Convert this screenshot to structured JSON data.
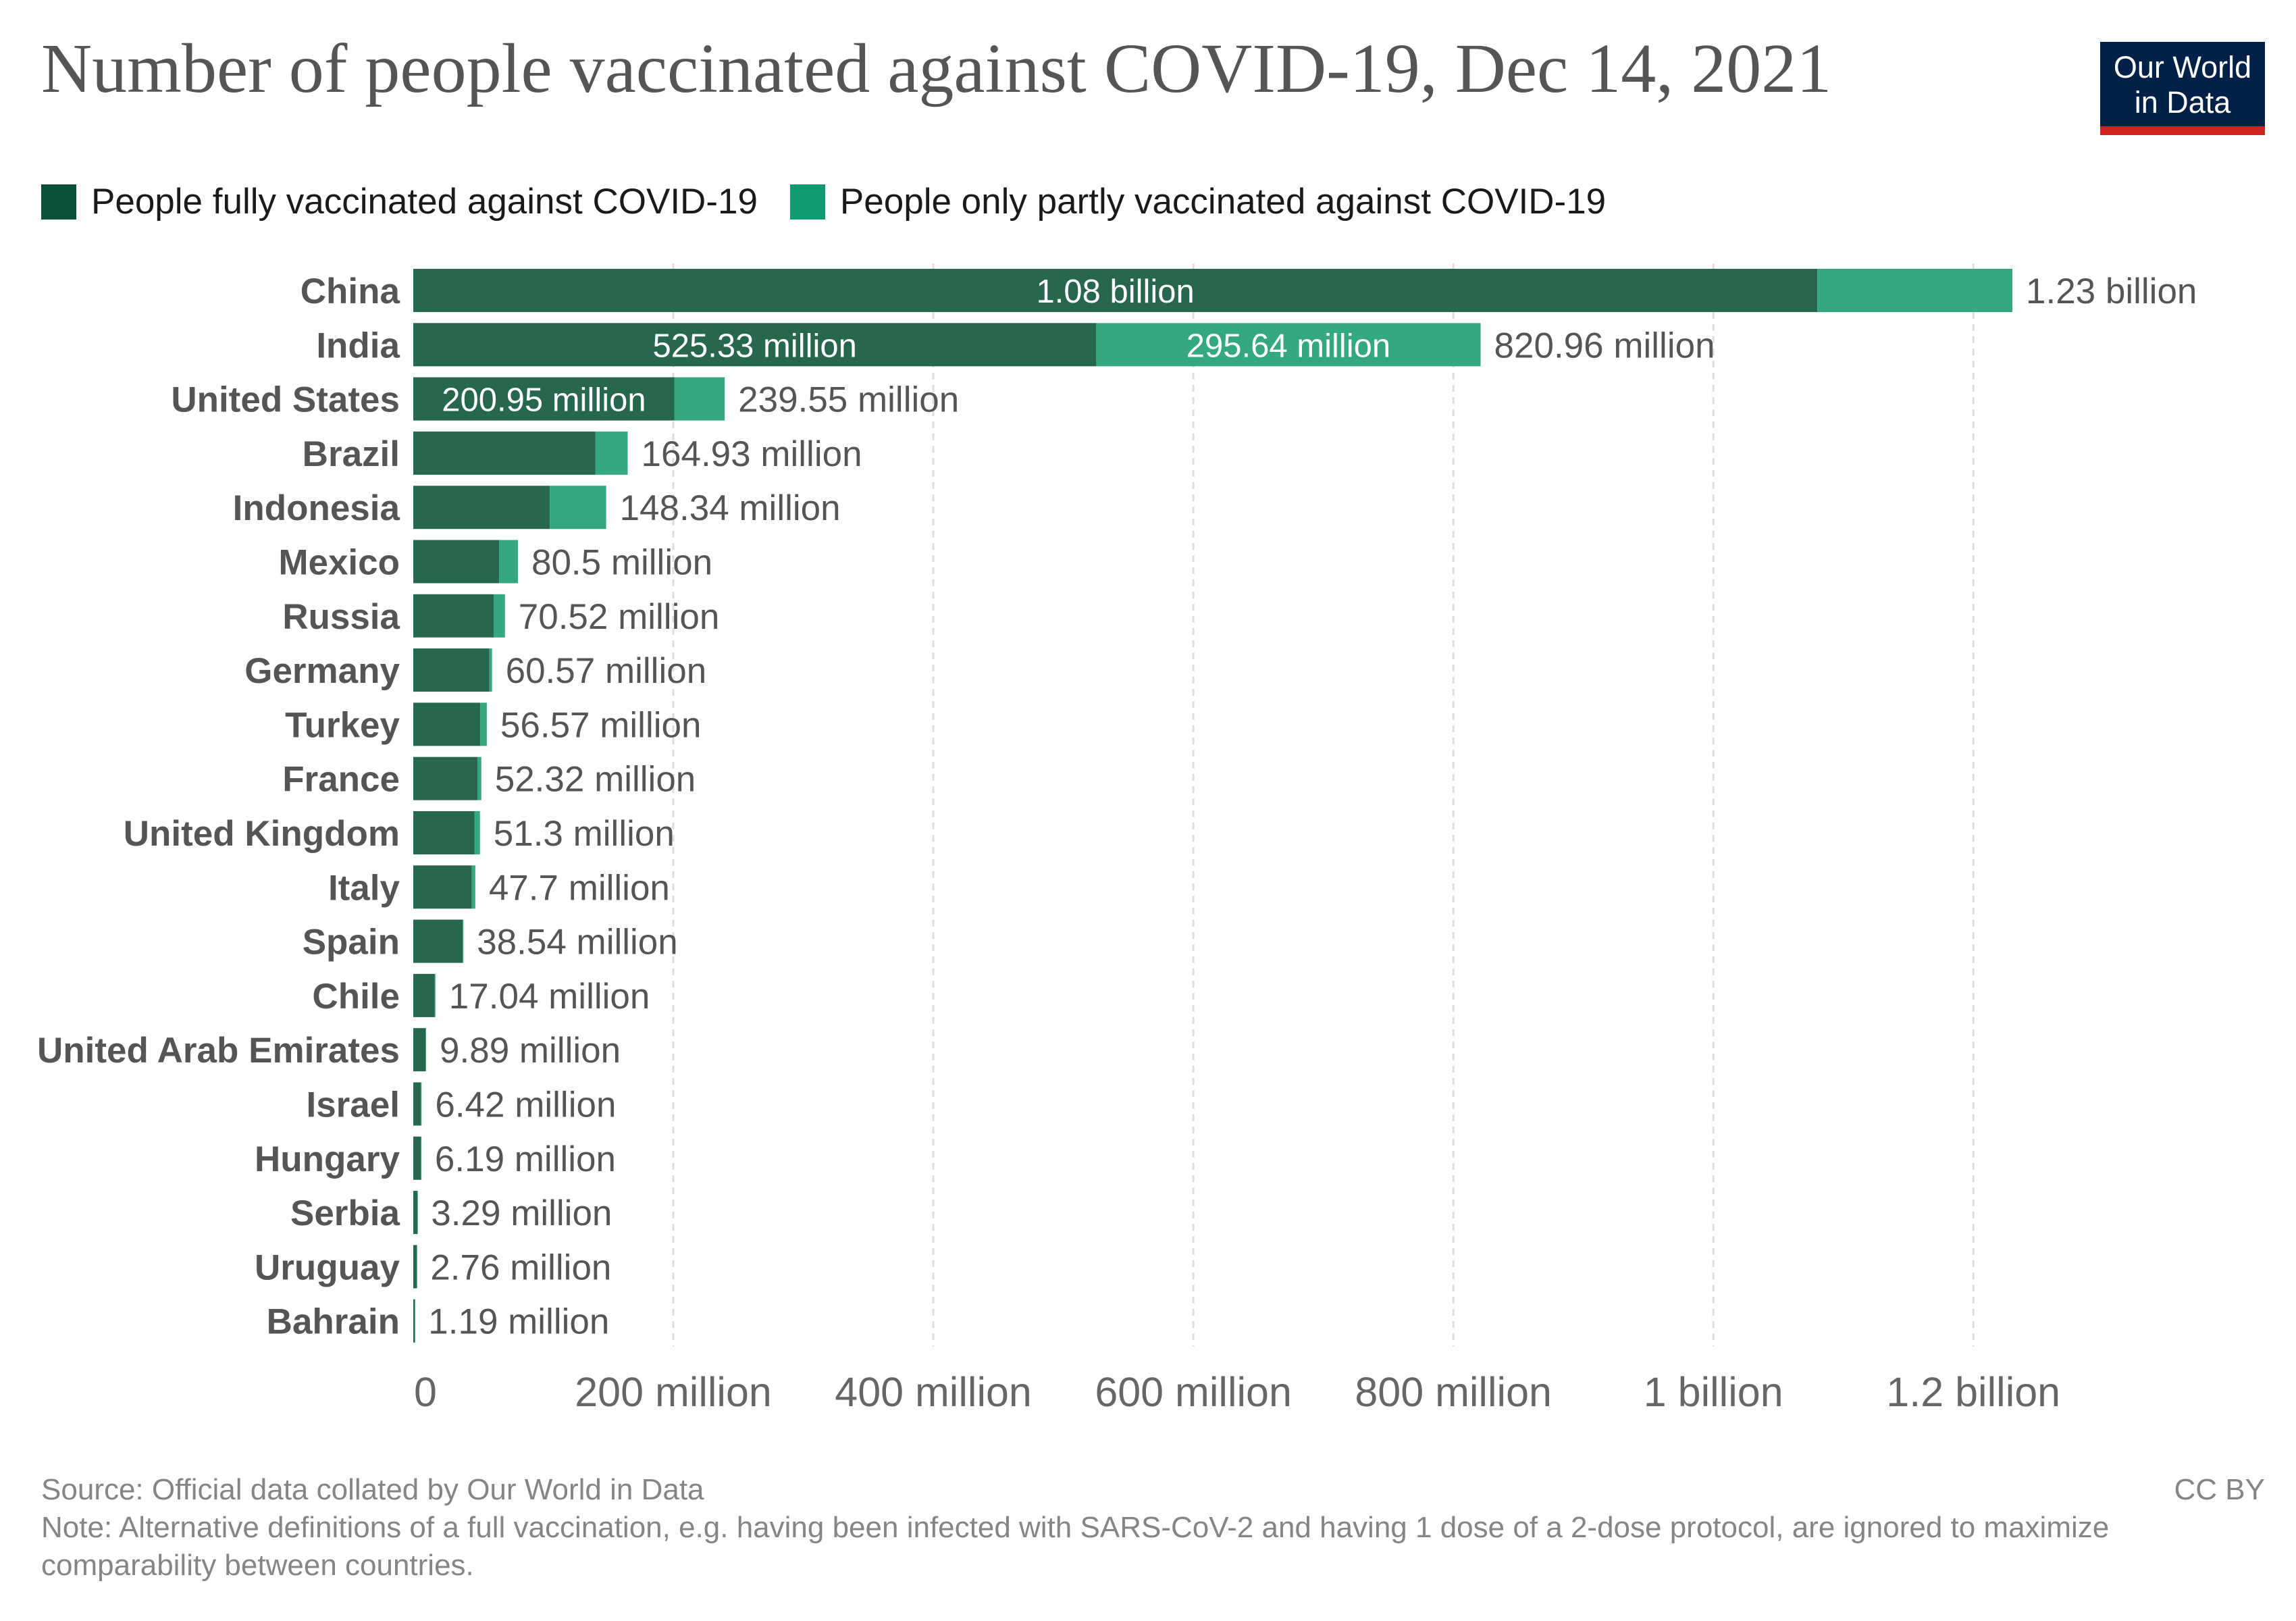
{
  "title": "Number of people vaccinated against COVID-19, Dec 14, 2021",
  "logo": {
    "line1": "Our World",
    "line2": "in Data"
  },
  "legend": {
    "full_label": "People fully vaccinated against COVID-19",
    "partial_label": "People only partly vaccinated against COVID-19"
  },
  "colors": {
    "full": "#26674e",
    "partial": "#33a883",
    "legend_full": "#09503a",
    "legend_partial": "#0f9a6f",
    "grid": "#dddddd",
    "tick": "#666666",
    "label": "#555555",
    "logo_bg": "#002147",
    "logo_bar": "#ce261e"
  },
  "chart_data": {
    "type": "bar",
    "orientation": "horizontal",
    "stacked": true,
    "title": "Number of people vaccinated against COVID-19, Dec 14, 2021",
    "units": "people",
    "categories": [
      "China",
      "India",
      "United States",
      "Brazil",
      "Indonesia",
      "Mexico",
      "Russia",
      "Germany",
      "Turkey",
      "France",
      "United Kingdom",
      "Italy",
      "Spain",
      "Chile",
      "United Arab Emirates",
      "Israel",
      "Hungary",
      "Serbia",
      "Uruguay",
      "Bahrain"
    ],
    "series": [
      {
        "name": "People fully vaccinated against COVID-19",
        "values": [
          1080000000,
          525330000,
          200950000,
          140000000,
          105000000,
          66000000,
          62000000,
          58500000,
          51500000,
          49500000,
          47000000,
          45000000,
          38000000,
          16500000,
          9400000,
          5800000,
          5900000,
          3100000,
          2600000,
          1100000
        ]
      },
      {
        "name": "People only partly vaccinated against COVID-19",
        "values": [
          150000000,
          295640000,
          38600000,
          24930000,
          43340000,
          14500000,
          8520000,
          2070000,
          5070000,
          2820000,
          4300000,
          2700000,
          540000,
          540000,
          490000,
          620000,
          290000,
          190000,
          160000,
          90000
        ]
      }
    ],
    "totals": [
      1230000000,
      820960000,
      239550000,
      164930000,
      148340000,
      80500000,
      70520000,
      60570000,
      56570000,
      52320000,
      51300000,
      47700000,
      38540000,
      17040000,
      9890000,
      6420000,
      6190000,
      3290000,
      2760000,
      1190000
    ],
    "total_labels": [
      "1.23 billion",
      "820.96 million",
      "239.55 million",
      "164.93 million",
      "148.34 million",
      "80.5 million",
      "70.52 million",
      "60.57 million",
      "56.57 million",
      "52.32 million",
      "51.3 million",
      "47.7 million",
      "38.54 million",
      "17.04 million",
      "9.89 million",
      "6.42 million",
      "6.19 million",
      "3.29 million",
      "2.76 million",
      "1.19 million"
    ],
    "inner_labels_full": [
      "1.08 billion",
      "525.33 million",
      "200.95 million",
      "",
      "",
      "",
      "",
      "",
      "",
      "",
      "",
      "",
      "",
      "",
      "",
      "",
      "",
      "",
      "",
      ""
    ],
    "inner_labels_partial": [
      "",
      "295.64 million",
      "",
      "",
      "",
      "",
      "",
      "",
      "",
      "",
      "",
      "",
      "",
      "",
      "",
      "",
      "",
      "",
      "",
      ""
    ],
    "x_ticks": [
      0,
      200000000,
      400000000,
      600000000,
      800000000,
      1000000000,
      1200000000
    ],
    "x_tick_labels": [
      "0",
      "200 million",
      "400 million",
      "600 million",
      "800 million",
      "1 billion",
      "1.2 billion"
    ],
    "xlim": [
      0,
      1230000000
    ],
    "grid": true,
    "legend_position": "top-left"
  },
  "footer": {
    "source": "Source: Official data collated by Our World in Data",
    "note": "Note: Alternative definitions of a full vaccination, e.g. having been infected with SARS-CoV-2 and having 1 dose of a 2-dose protocol, are ignored to maximize comparability between countries.",
    "license": "CC BY"
  }
}
